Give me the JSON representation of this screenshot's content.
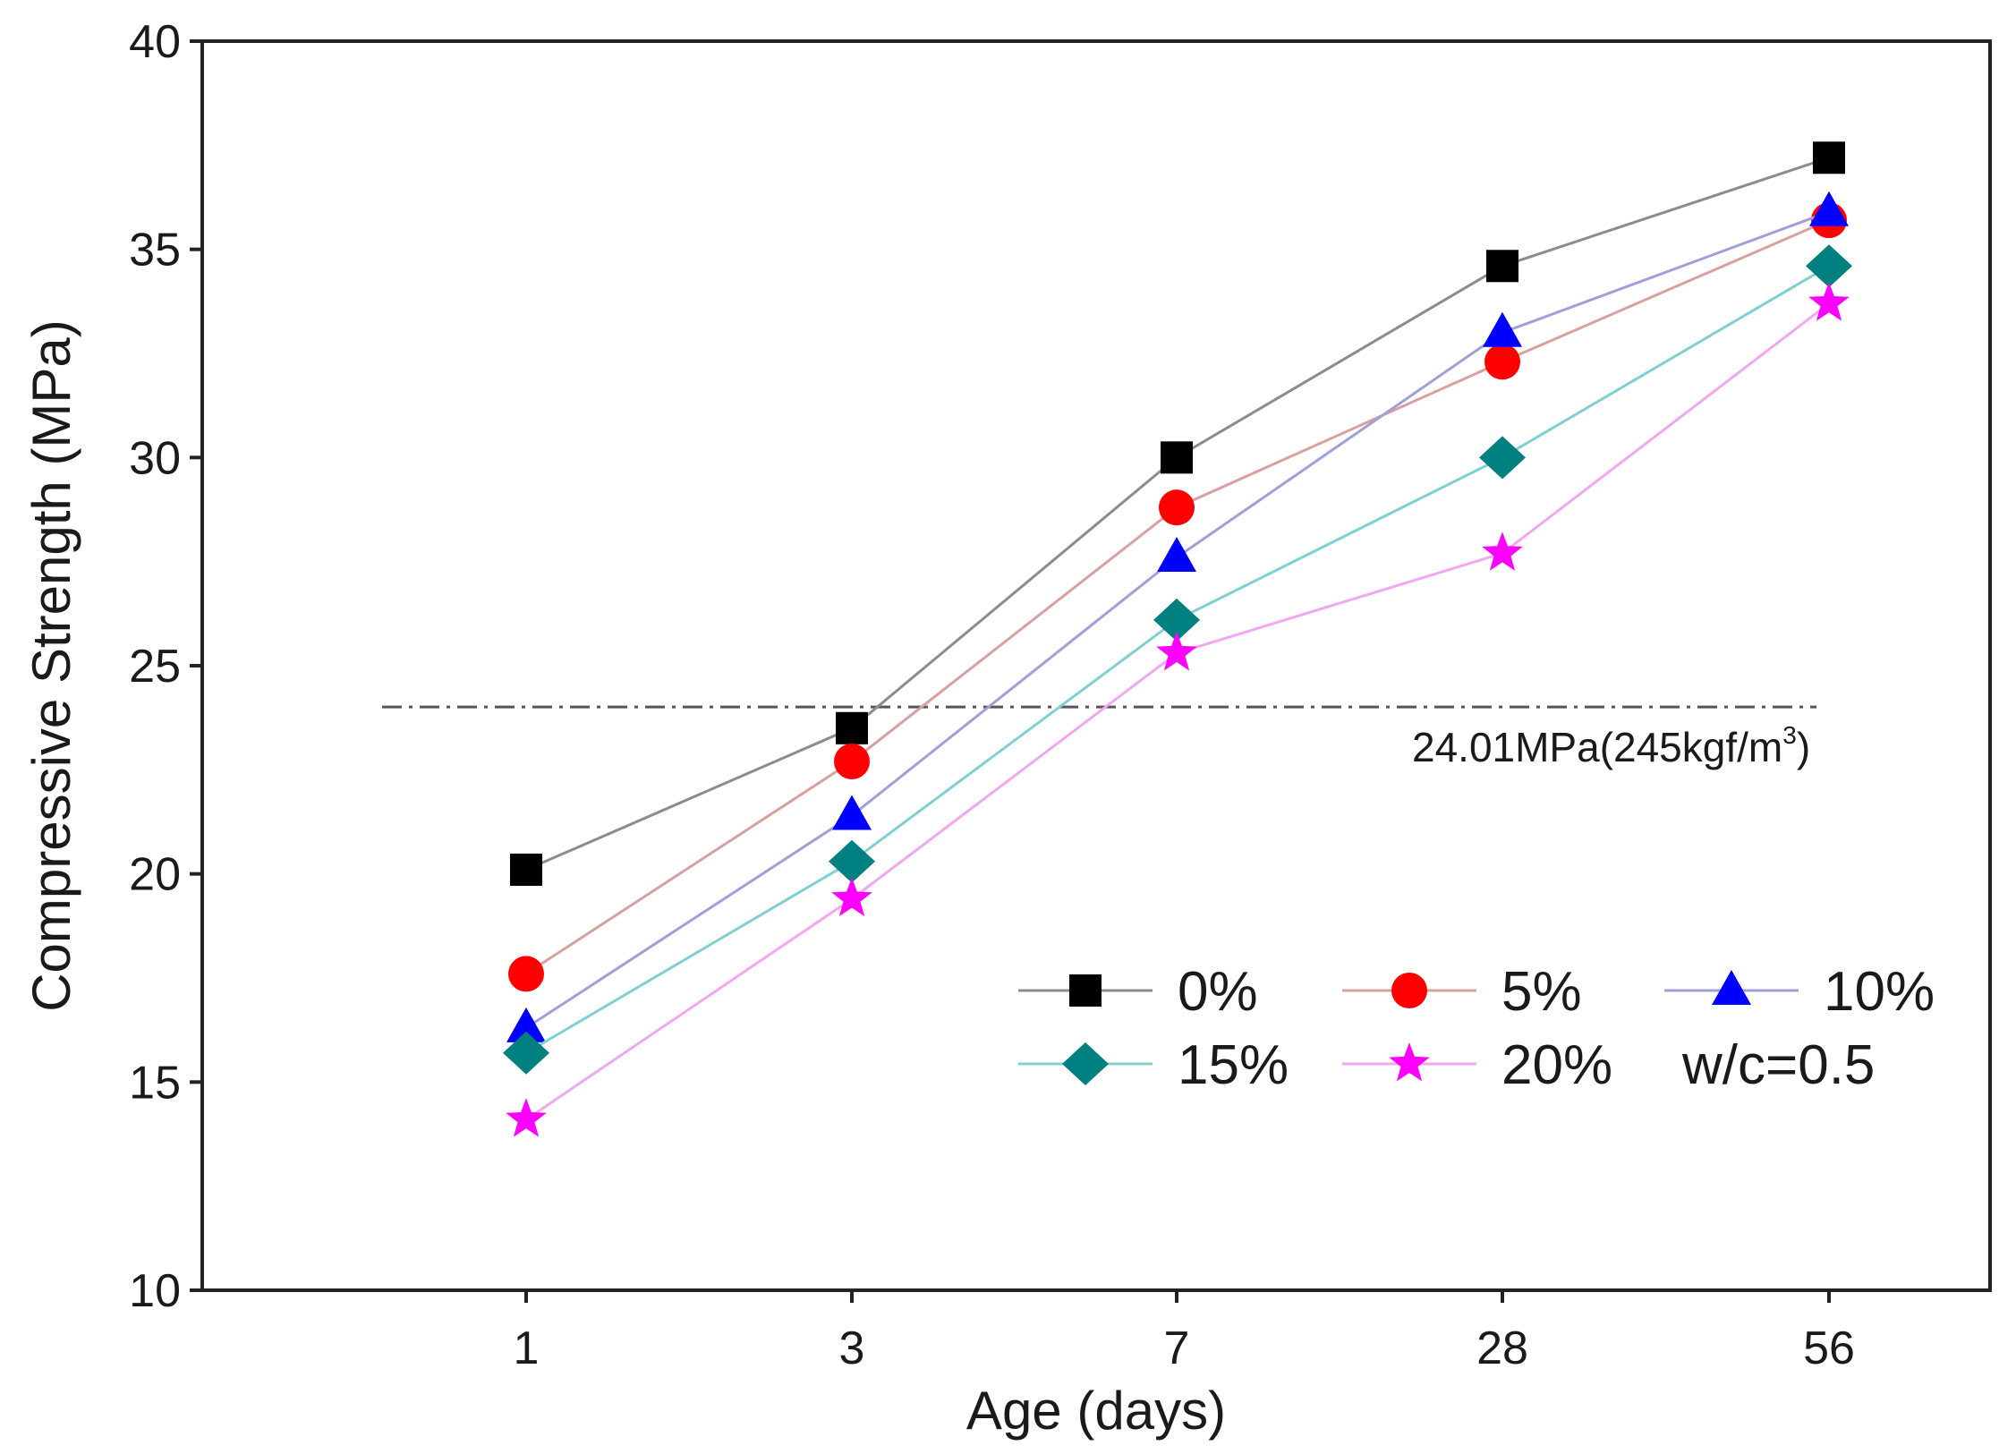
{
  "chart_data": {
    "type": "line",
    "title": "",
    "xlabel": "Age (days)",
    "ylabel": "Compressive Strength (MPa)",
    "categories": [
      "1",
      "3",
      "7",
      "28",
      "56"
    ],
    "ylim": [
      10,
      40
    ],
    "yticks": [
      10,
      15,
      20,
      25,
      30,
      35,
      40
    ],
    "grid": false,
    "legend_position": "lower-right",
    "series": [
      {
        "name": "0%",
        "marker": "square",
        "marker_color": "#000000",
        "line_color": "#8c8c8c",
        "values": [
          20.1,
          23.5,
          30.0,
          34.6,
          37.2
        ]
      },
      {
        "name": "5%",
        "marker": "circle",
        "marker_color": "#ff0000",
        "line_color": "#d9a0a0",
        "values": [
          17.6,
          22.7,
          28.8,
          32.3,
          35.7
        ]
      },
      {
        "name": "10%",
        "marker": "triangle",
        "marker_color": "#0000ff",
        "line_color": "#a0a0d8",
        "values": [
          16.3,
          21.4,
          27.6,
          33.0,
          35.9
        ]
      },
      {
        "name": "15%",
        "marker": "diamond",
        "marker_color": "#008080",
        "line_color": "#80d0d0",
        "values": [
          15.7,
          20.3,
          26.1,
          30.0,
          34.6
        ]
      },
      {
        "name": "20%",
        "marker": "star",
        "marker_color": "#ff00ff",
        "line_color": "#f0a8f0",
        "values": [
          14.1,
          19.4,
          25.3,
          27.7,
          33.7
        ]
      }
    ],
    "reference_line": {
      "value": 24.01,
      "label_prefix": "24.01MPa(245kgf/m",
      "label_sup": "3",
      "label_suffix": ")",
      "color": "#555555"
    },
    "legend_note": "w/c=0.5"
  }
}
